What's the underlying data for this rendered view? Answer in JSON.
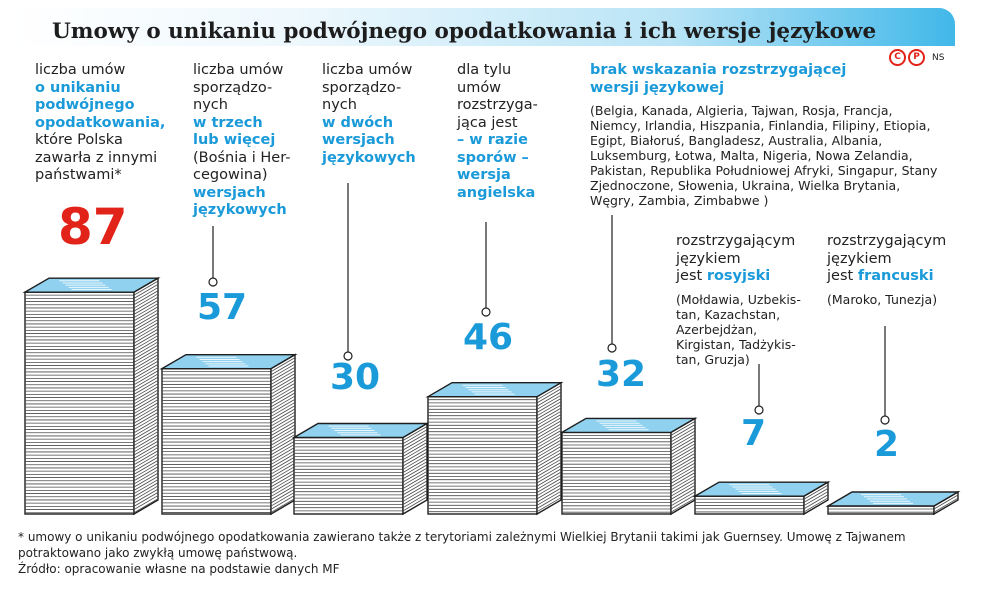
{
  "header": {
    "title": "Umowy o unikaniu podwójnego opodatkowania i ich wersje językowe",
    "logo_marks": [
      "C",
      "P"
    ],
    "logo_ns": "NS"
  },
  "columns": [
    {
      "lines": [
        {
          "t": "liczba umów",
          "hl": false
        },
        {
          "t": "o unikaniu",
          "hl": true
        },
        {
          "t": "podwójnego",
          "hl": true
        },
        {
          "t": "opodatkowania,",
          "hl": true
        },
        {
          "t": "które Polska",
          "hl": false
        },
        {
          "t": "zawarła z innymi",
          "hl": false
        },
        {
          "t": "państwami*",
          "hl": false
        }
      ],
      "paren": ""
    },
    {
      "lines": [
        {
          "t": "liczba umów",
          "hl": false
        },
        {
          "t": "sporządzo-",
          "hl": false
        },
        {
          "t": "nych",
          "hl": false
        },
        {
          "t": "w trzech",
          "hl": true
        },
        {
          "t": "lub więcej",
          "hl": true
        },
        {
          "t": "(Bośnia i Her-",
          "hl": false
        },
        {
          "t": "cegowina)",
          "hl": false
        },
        {
          "t": "wersjach",
          "hl": true
        },
        {
          "t": "językowych",
          "hl": true
        }
      ],
      "paren": ""
    },
    {
      "lines": [
        {
          "t": "liczba umów",
          "hl": false
        },
        {
          "t": "sporządzo-",
          "hl": false
        },
        {
          "t": "nych",
          "hl": false
        },
        {
          "t": "w dwóch",
          "hl": true
        },
        {
          "t": "wersjach",
          "hl": true
        },
        {
          "t": "językowych",
          "hl": true
        }
      ],
      "paren": ""
    },
    {
      "lines": [
        {
          "t": "dla tylu",
          "hl": false
        },
        {
          "t": "umów",
          "hl": false
        },
        {
          "t": "rozstrzyga-",
          "hl": false
        },
        {
          "t": "jąca jest",
          "hl": false
        },
        {
          "t": "– w razie",
          "hl": true
        },
        {
          "t": "sporów –",
          "hl": true
        },
        {
          "t": "wersja",
          "hl": true
        },
        {
          "t": "angielska",
          "hl": true
        }
      ],
      "paren": ""
    },
    {
      "lines": [
        {
          "t": "brak wskazania rozstrzygającej",
          "hl": true
        },
        {
          "t": "wersji językowej",
          "hl": true
        }
      ],
      "paren": "(Belgia, Kanada, Algieria, Tajwan, Rosja, Francja, Niemcy, Irlandia, Hiszpania, Finlandia, Filipiny, Etiopia, Egipt, Białoruś, Bangladesz, Australia, Albania, Luksemburg, Łotwa, Malta, Nigeria, Nowa Zelandia, Pakistan, Republika Południowej Afryki, Singapur, Stany Zjednoczone, Słowenia, Ukraina, Wielka Brytania, Węgry, Zambia, Zimbabwe )"
    },
    {
      "lines": [
        {
          "t": "rozstrzygającym",
          "hl": false
        },
        {
          "t": "językiem",
          "hl": false
        },
        {
          "t": "jest ",
          "hl": false,
          "inline": true
        },
        {
          "t": "rosyjski",
          "hl": true,
          "inline": true
        }
      ],
      "paren": "(Mołdawia, Uzbekis-tan, Kazachstan, Azerbejdżan, Kirgistan, Tadżykis-tan, Gruzja)"
    },
    {
      "lines": [
        {
          "t": "rozstrzygającym",
          "hl": false
        },
        {
          "t": "językiem",
          "hl": false
        },
        {
          "t": "jest ",
          "hl": false,
          "inline": true
        },
        {
          "t": "francuski",
          "hl": true,
          "inline": true
        }
      ],
      "paren": "(Maroko, Tunezja)"
    }
  ],
  "chart_data": {
    "type": "bar",
    "title": "Umowy o unikaniu podwójnego opodatkowania i ich wersje językowe",
    "categories": [
      "liczba umów o unikaniu podwójnego opodatkowania",
      "w trzech lub więcej wersjach językowych",
      "w dwóch wersjach językowych",
      "rozstrzygająca wersja angielska",
      "brak wskazania rozstrzygającej wersji językowej",
      "rozstrzygającym językiem jest rosyjski",
      "rozstrzygającym językiem jest francuski"
    ],
    "values": [
      87,
      57,
      30,
      46,
      32,
      7,
      2
    ],
    "value_labels": [
      "87",
      "57",
      "30",
      "46",
      "32",
      "7",
      "2"
    ],
    "highlight_color": "#e2231a",
    "accent_color": "#1a9ad9",
    "paper_color": "#8fd1ef",
    "legend": "none",
    "grid": false
  },
  "footer": {
    "note": "* umowy o unikaniu podwójnego opodatkowania zawierano także z terytoriami zależnymi Wielkiej Brytanii takimi jak Guernsey. Umowę z Tajwanem potraktowano jako zwykłą umowę państwową.",
    "source": "Źródło: opracowanie własne na podstawie danych MF"
  }
}
